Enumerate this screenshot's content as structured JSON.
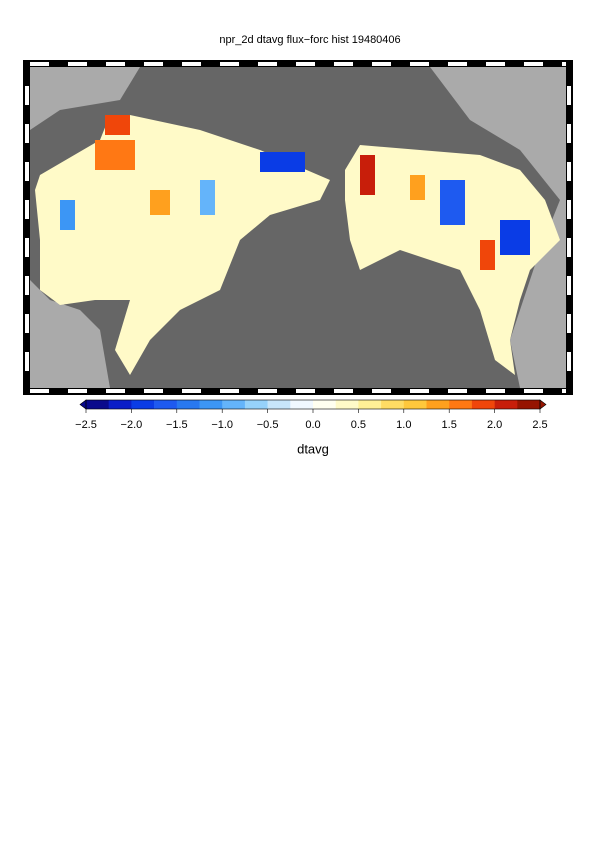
{
  "title": "npr_2d dtavg flux−forc hist 19480406",
  "colorbar": {
    "label": "dtavg",
    "lim": [
      -2.5,
      2.5
    ],
    "ticks": [
      {
        "value": -2.5,
        "label": "−2.5"
      },
      {
        "value": -2.0,
        "label": "−2.0"
      },
      {
        "value": -1.5,
        "label": "−1.5"
      },
      {
        "value": -1.0,
        "label": "−1.0"
      },
      {
        "value": -0.5,
        "label": "−0.5"
      },
      {
        "value": 0,
        "label": "0.0"
      },
      0.5,
      {
        "value": 1,
        "label": "1.0"
      },
      1.5,
      {
        "value": 2,
        "label": "2.0"
      },
      2.5
    ],
    "colors": [
      "#0a0a8c",
      "#0a1ec8",
      "#0a3ce6",
      "#1e5af0",
      "#2878f0",
      "#3c96f5",
      "#64b4fa",
      "#96d2fa",
      "#c8e6fa",
      "#f0f8ff",
      "#fffff0",
      "#fffac8",
      "#fff096",
      "#ffdc64",
      "#ffc83c",
      "#ffa01e",
      "#ff7814",
      "#f0460a",
      "#c81e0a",
      "#961400"
    ]
  }
}
